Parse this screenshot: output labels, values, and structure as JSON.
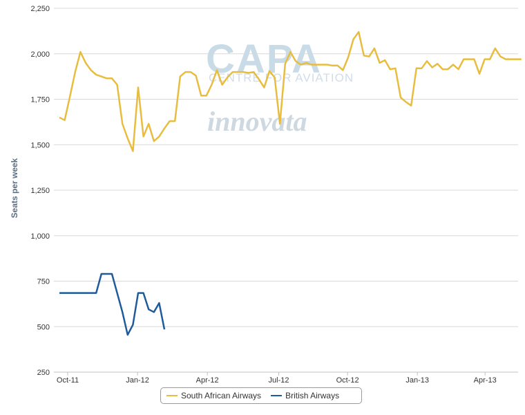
{
  "watermark": {
    "brand": "CAPA",
    "tagline": "CENTRE FOR AVIATION",
    "partner": "innovata"
  },
  "chart_data": {
    "type": "line",
    "title": "",
    "xlabel": "",
    "ylabel": "Seats per week",
    "ylim": [
      250,
      2250
    ],
    "yticks": [
      "2,250",
      "2,000",
      "1,750",
      "1,500",
      "1,250",
      "1,000",
      "750",
      "500",
      "250"
    ],
    "xticks": [
      "Oct-11",
      "Jan-12",
      "Apr-12",
      "Jul-12",
      "Oct-12",
      "Jan-13",
      "Apr-13"
    ],
    "x_start": "2011-10-02",
    "x_step": "weekly",
    "grid": true,
    "legend_position": "bottom",
    "series": [
      {
        "name": "South African Airways",
        "color": "#e8bd3f",
        "values": [
          1650,
          1635,
          1765,
          1900,
          2010,
          1950,
          1910,
          1885,
          1875,
          1865,
          1865,
          1830,
          1615,
          1535,
          1465,
          1815,
          1545,
          1615,
          1520,
          1545,
          1590,
          1630,
          1630,
          1875,
          1900,
          1900,
          1880,
          1770,
          1770,
          1830,
          1910,
          1830,
          1870,
          1900,
          1900,
          1900,
          1895,
          1900,
          1860,
          1815,
          1905,
          1870,
          1615,
          1945,
          2010,
          1960,
          1940,
          1950,
          1940,
          1940,
          1940,
          1940,
          1935,
          1935,
          1910,
          1980,
          2080,
          2120,
          1990,
          1985,
          2030,
          1950,
          1965,
          1915,
          1920,
          1760,
          1735,
          1715,
          1920,
          1920,
          1960,
          1925,
          1945,
          1915,
          1915,
          1940,
          1915,
          1970,
          1970,
          1970,
          1890,
          1970,
          1970,
          2030,
          1985,
          1970,
          1970,
          1970,
          1970
        ]
      },
      {
        "name": "British Airways",
        "color": "#1f5a9a",
        "values": [
          685,
          685,
          685,
          685,
          685,
          685,
          685,
          685,
          790,
          790,
          790,
          685,
          580,
          455,
          510,
          685,
          685,
          595,
          580,
          630,
          485
        ]
      }
    ]
  }
}
